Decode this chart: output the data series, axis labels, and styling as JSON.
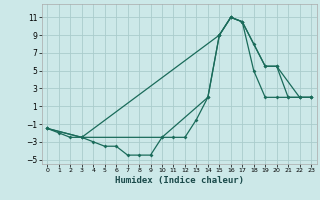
{
  "xlabel": "Humidex (Indice chaleur)",
  "bg_color": "#cce8e8",
  "grid_color": "#aacccc",
  "line_color": "#1a6b5a",
  "xlim": [
    -0.5,
    23.5
  ],
  "ylim": [
    -5.5,
    12.5
  ],
  "xticks": [
    0,
    1,
    2,
    3,
    4,
    5,
    6,
    7,
    8,
    9,
    10,
    11,
    12,
    13,
    14,
    15,
    16,
    17,
    18,
    19,
    20,
    21,
    22,
    23
  ],
  "yticks": [
    -5,
    -3,
    -1,
    1,
    3,
    5,
    7,
    9,
    11
  ],
  "line1": {
    "x": [
      0,
      3,
      10,
      14,
      15,
      16,
      17,
      18,
      19,
      20,
      21,
      22,
      23
    ],
    "y": [
      -1.5,
      -2.5,
      -2.5,
      2.0,
      9.0,
      11.0,
      10.5,
      8.0,
      5.5,
      5.5,
      2.0,
      2.0,
      2.0
    ]
  },
  "line2": {
    "x": [
      0,
      3,
      15,
      16,
      17,
      19,
      20,
      22,
      23
    ],
    "y": [
      -1.5,
      -2.5,
      9.0,
      11.0,
      10.5,
      5.5,
      5.5,
      2.0,
      2.0
    ]
  },
  "line3": {
    "x": [
      0,
      1,
      2,
      3,
      4,
      5,
      6,
      7,
      8,
      9,
      10,
      11,
      12,
      13,
      14,
      15,
      16,
      17,
      18,
      19,
      20,
      21,
      22,
      23
    ],
    "y": [
      -1.5,
      -2.0,
      -2.5,
      -2.5,
      -3.0,
      -3.5,
      -3.5,
      -4.5,
      -4.5,
      -4.5,
      -2.5,
      -2.5,
      -2.5,
      -0.5,
      2.0,
      9.0,
      11.0,
      10.5,
      5.0,
      2.0,
      2.0,
      2.0,
      2.0,
      2.0
    ]
  }
}
